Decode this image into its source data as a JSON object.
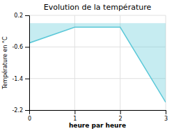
{
  "chart_data": {
    "type": "area",
    "title": "Evolution de la température",
    "xlabel": "heure par heure",
    "ylabel": "Température en °C",
    "x": [
      0,
      1,
      2,
      3
    ],
    "values": [
      -0.5,
      -0.1,
      -0.1,
      -2.0
    ],
    "xlim": [
      0,
      3
    ],
    "ylim": [
      -2.2,
      0.2
    ],
    "xticks": [
      0,
      1,
      2,
      3
    ],
    "yticks": [
      0.2,
      -0.6,
      -1.4,
      -2.2
    ],
    "color": "#5bc8d8",
    "grid": true
  }
}
